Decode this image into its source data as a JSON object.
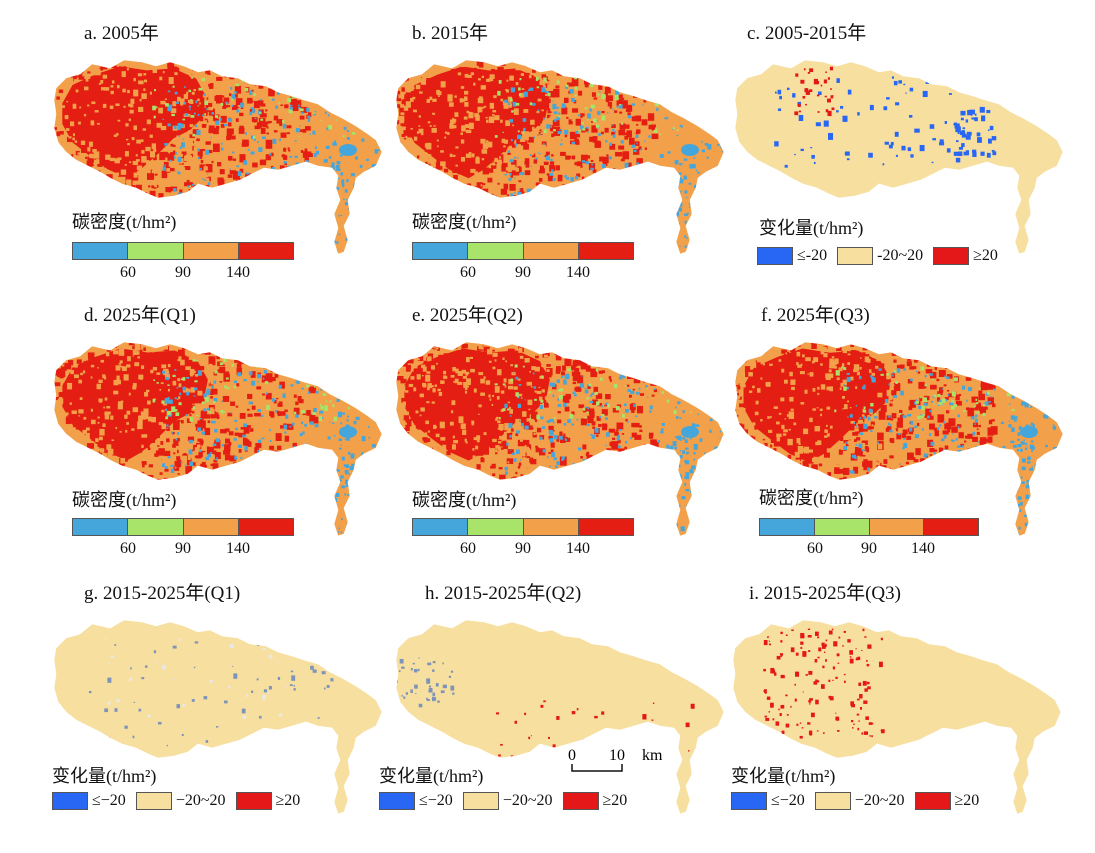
{
  "colors": {
    "class1": "#45a6dc",
    "class2": "#a8e36a",
    "class3": "#f3a04a",
    "class4": "#e41e12",
    "dec": "#2866f4",
    "flat": "#f7dfa0",
    "inc": "#e41818"
  },
  "legend_density": {
    "title": "碳密度(t/hm²)",
    "ticks": [
      "60",
      "90",
      "140"
    ]
  },
  "legend_change_c": {
    "title": "变化量(t/hm²)",
    "items": [
      "≤-20",
      "-20~20",
      "≥20"
    ]
  },
  "legend_change_gi": {
    "title": "变化量(t/hm²)",
    "items": [
      "≤−20",
      "−20~20",
      "≥20"
    ]
  },
  "panels": [
    {
      "id": "a",
      "title": "a. 2005年",
      "kind": "density",
      "red": 0.6
    },
    {
      "id": "b",
      "title": "b. 2015年",
      "kind": "density",
      "red": 0.62
    },
    {
      "id": "c",
      "title": "c. 2005-2015年",
      "kind": "change"
    },
    {
      "id": "d",
      "title": "d. 2025年(Q1)",
      "kind": "density",
      "red": 0.63
    },
    {
      "id": "e",
      "title": "e. 2025年(Q2)",
      "kind": "density",
      "red": 0.63
    },
    {
      "id": "f",
      "title": "f. 2025年(Q3)",
      "kind": "density",
      "red": 0.68
    },
    {
      "id": "g",
      "title": "g. 2015-2025年(Q1)",
      "kind": "change"
    },
    {
      "id": "h",
      "title": "h. 2015-2025年(Q2)",
      "kind": "change"
    },
    {
      "id": "i",
      "title": "i. 2015-2025年(Q3)",
      "kind": "change"
    }
  ],
  "scale": {
    "zero": "0",
    "ten": "10",
    "unit": "km"
  }
}
